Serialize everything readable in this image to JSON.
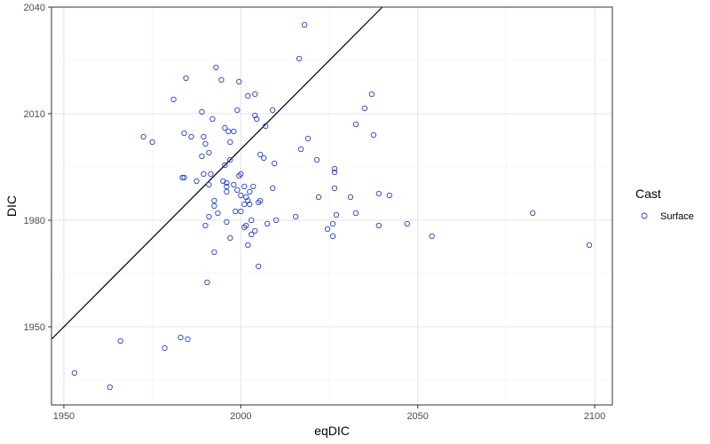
{
  "chart_data": {
    "type": "scatter",
    "xlabel": "eqDIC",
    "ylabel": "DIC",
    "xlim": [
      1946.5,
      2105.0
    ],
    "ylim": [
      1928.0,
      2040.0
    ],
    "x_ticks": [
      1950,
      2000,
      2050,
      2100
    ],
    "y_ticks": [
      1950,
      1980,
      2010,
      2040
    ],
    "x_tick_labels": [
      "1950",
      "2000",
      "2050",
      "2100"
    ],
    "y_tick_labels": [
      "1950",
      "1980",
      "2010",
      "2040"
    ],
    "grid": true,
    "legend": {
      "title": "Cast",
      "placement": "right",
      "entries": [
        {
          "label": "Surface",
          "color": "#1f3fd6",
          "marker": "open-circle"
        }
      ]
    },
    "reference_line": {
      "type": "identity",
      "slope": 1,
      "intercept": 0,
      "color": "#000000"
    },
    "series": [
      {
        "name": "Surface",
        "color": "#1f3fd6",
        "points": [
          [
            1953,
            1937
          ],
          [
            1963,
            1933
          ],
          [
            1966,
            1946
          ],
          [
            1978.5,
            1944
          ],
          [
            1983,
            1947
          ],
          [
            1985,
            1946.5
          ],
          [
            1972.5,
            2003.5
          ],
          [
            1975,
            2002
          ],
          [
            1981,
            2014
          ],
          [
            1983.5,
            1992
          ],
          [
            1984,
            1992
          ],
          [
            1984,
            2004.5
          ],
          [
            1984.5,
            2020
          ],
          [
            1986,
            2003.5
          ],
          [
            1987.5,
            1991
          ],
          [
            1989,
            2010.5
          ],
          [
            1989,
            1998
          ],
          [
            1989.5,
            1993
          ],
          [
            1989.5,
            2003.5
          ],
          [
            1990,
            2001.5
          ],
          [
            1990,
            1978.5
          ],
          [
            1990.5,
            1962.5
          ],
          [
            1991,
            1981
          ],
          [
            1991,
            1990
          ],
          [
            1991,
            1999
          ],
          [
            1991.5,
            1993
          ],
          [
            1992,
            2008.5
          ],
          [
            1992.5,
            1985.5
          ],
          [
            1992.5,
            1984
          ],
          [
            1992.5,
            1971
          ],
          [
            1993,
            2023
          ],
          [
            1993.5,
            1982
          ],
          [
            1994.5,
            2019.5
          ],
          [
            1995,
            1991
          ],
          [
            1995.5,
            2006
          ],
          [
            1995.5,
            1995.5
          ],
          [
            1996,
            1990.5
          ],
          [
            1996,
            1989.5
          ],
          [
            1996,
            1988
          ],
          [
            1996,
            1979.5
          ],
          [
            1996.5,
            2005
          ],
          [
            1997,
            2002
          ],
          [
            1997,
            1997
          ],
          [
            1997,
            1975
          ],
          [
            1998,
            2005
          ],
          [
            1998,
            1990
          ],
          [
            1998.5,
            1982.5
          ],
          [
            1999,
            1988.5
          ],
          [
            1999,
            2011
          ],
          [
            1999.5,
            2019
          ],
          [
            1999.5,
            1992.5
          ],
          [
            2000,
            1993
          ],
          [
            2000,
            1987
          ],
          [
            2000,
            1982.5
          ],
          [
            2001,
            1989.5
          ],
          [
            2001,
            1984.5
          ],
          [
            2001,
            1978
          ],
          [
            2001.5,
            1978.5
          ],
          [
            2001.5,
            1986.5
          ],
          [
            2002,
            1973
          ],
          [
            2002,
            2015
          ],
          [
            2002,
            1985.5
          ],
          [
            2002.5,
            1988
          ],
          [
            2002.5,
            1984.5
          ],
          [
            2003,
            1980
          ],
          [
            2003,
            1976
          ],
          [
            2003.5,
            1989.5
          ],
          [
            2004,
            2015.5
          ],
          [
            2004,
            1977
          ],
          [
            2004,
            2009.5
          ],
          [
            2004.5,
            2008.5
          ],
          [
            2005,
            1985
          ],
          [
            2005,
            1967
          ],
          [
            2005.5,
            1998.5
          ],
          [
            2005.5,
            1985.5
          ],
          [
            2006.5,
            1997.5
          ],
          [
            2007,
            2006.5
          ],
          [
            2007.5,
            1979
          ],
          [
            2009,
            2011
          ],
          [
            2009,
            1989
          ],
          [
            2009.5,
            1996
          ],
          [
            2010,
            1980
          ],
          [
            2015.5,
            1981
          ],
          [
            2016.5,
            2025.5
          ],
          [
            2017,
            2000
          ],
          [
            2018,
            2035
          ],
          [
            2019,
            2003
          ],
          [
            2021.5,
            1997
          ],
          [
            2022,
            1986.5
          ],
          [
            2024.5,
            1977.5
          ],
          [
            2026,
            1979
          ],
          [
            2026,
            1975.5
          ],
          [
            2026.5,
            1994.5
          ],
          [
            2026.5,
            1993.5
          ],
          [
            2026.5,
            1989
          ],
          [
            2027,
            1981.5
          ],
          [
            2031,
            1986.5
          ],
          [
            2032.5,
            2007
          ],
          [
            2032.5,
            1982
          ],
          [
            2035,
            2011.5
          ],
          [
            2037,
            2015.5
          ],
          [
            2037.5,
            2004
          ],
          [
            2039,
            1978.5
          ],
          [
            2039,
            1987.5
          ],
          [
            2042,
            1987
          ],
          [
            2047,
            1979
          ],
          [
            2054,
            1975.5
          ],
          [
            2082.5,
            1982
          ],
          [
            2098.5,
            1973
          ]
        ]
      }
    ]
  }
}
